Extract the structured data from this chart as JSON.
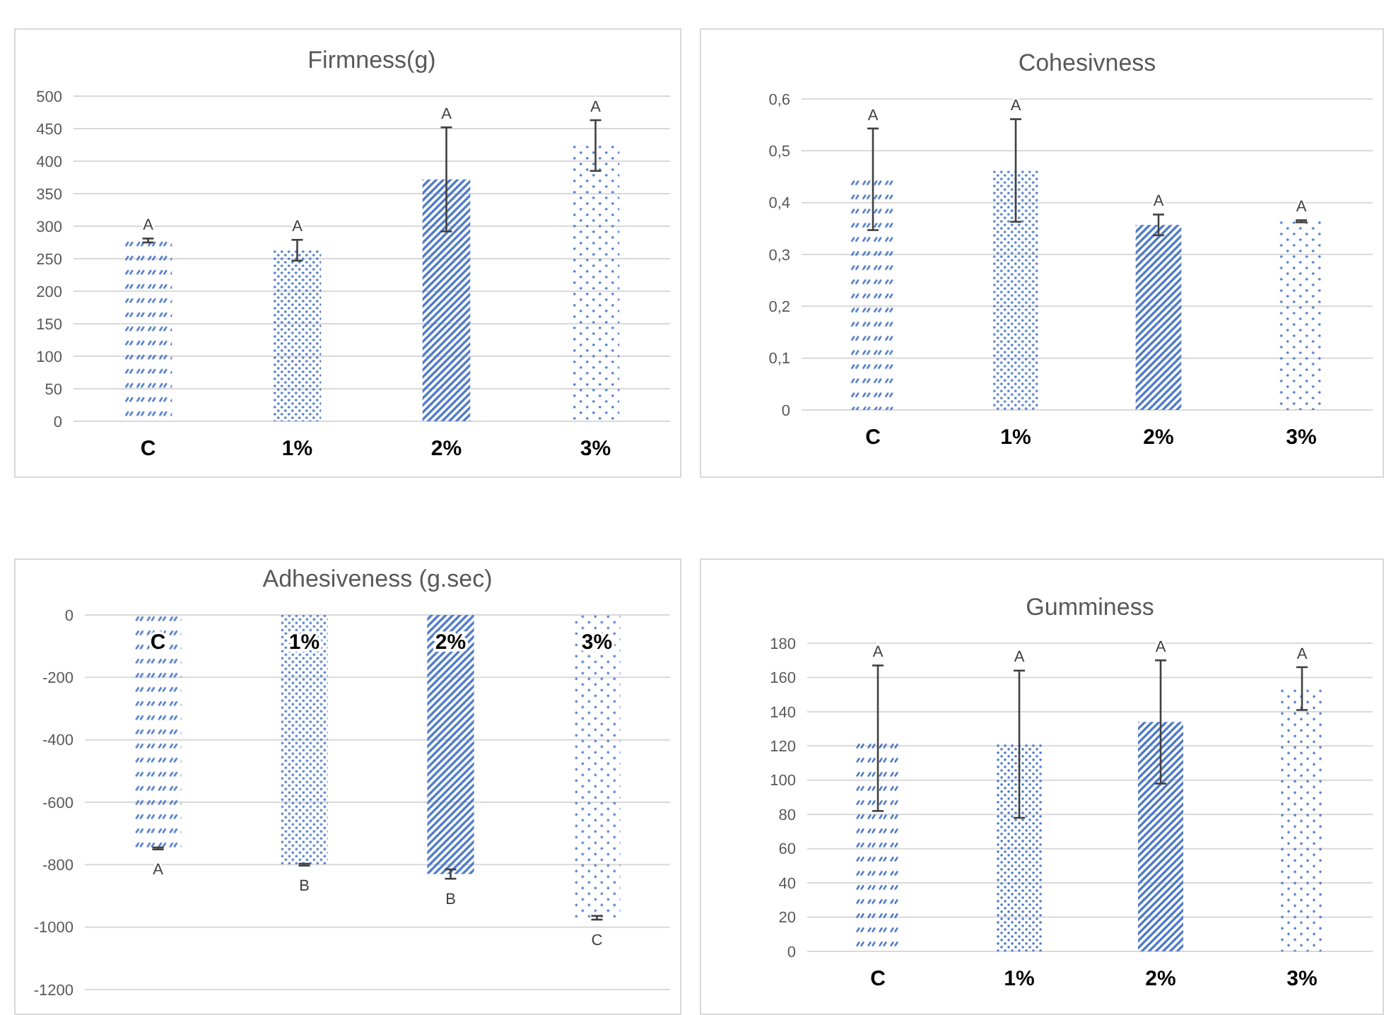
{
  "chart_data": [
    {
      "type": "bar",
      "title": "Firmness(g)",
      "categories": [
        "C",
        "1%",
        "2%",
        "3%"
      ],
      "color": "#4472c4",
      "values": [
        278,
        263,
        372,
        424
      ],
      "errors": [
        3,
        16,
        80,
        39
      ],
      "ylim": [
        0,
        500
      ],
      "yticks": [
        0,
        50,
        100,
        150,
        200,
        250,
        300,
        350,
        400,
        450,
        500
      ],
      "grid": "y",
      "annotations": [
        "A",
        "A",
        "A",
        "A"
      ]
    },
    {
      "type": "bar",
      "title": "Cohesivness",
      "categories": [
        "C",
        "1%",
        "2%",
        "3%"
      ],
      "color": "#4472c4",
      "values": [
        0.445,
        0.462,
        0.357,
        0.364
      ],
      "errors": [
        0.098,
        0.099,
        0.02,
        0.002
      ],
      "ylim": [
        0,
        0.6
      ],
      "yticks": [
        {
          "value": 0,
          "label": "0"
        },
        {
          "value": 0.1,
          "label": "0,1"
        },
        {
          "value": 0.2,
          "label": "0,2"
        },
        {
          "value": 0.3,
          "label": "0,3"
        },
        {
          "value": 0.4,
          "label": "0,4"
        },
        {
          "value": 0.5,
          "label": "0,5"
        },
        {
          "value": 0.6,
          "label": "0,6"
        }
      ],
      "grid": "y",
      "annotations": [
        "A",
        "A",
        "A",
        "A"
      ]
    },
    {
      "type": "bar",
      "title": "Adhesiveness (g.sec)",
      "categories": [
        "C",
        "1%",
        "2%",
        "3%"
      ],
      "color": "#4472c4",
      "values": [
        -748,
        -800,
        -830,
        -970
      ],
      "errors": [
        3,
        3,
        15,
        6
      ],
      "ylim": [
        -1200,
        0
      ],
      "yticks": [
        -1200,
        -1000,
        -800,
        -600,
        -400,
        -200,
        0
      ],
      "grid": "y",
      "annotations": [
        "A",
        "B",
        "B",
        "C"
      ]
    },
    {
      "type": "bar",
      "title": "Gumminess",
      "categories": [
        "C",
        "1%",
        "2%",
        "3%"
      ],
      "color": "#4472c4",
      "values": [
        122,
        121,
        134,
        153
      ],
      "errors": [
        [
          82,
          167
        ],
        [
          78,
          164
        ],
        [
          98,
          170
        ],
        [
          141,
          166
        ]
      ],
      "ylim": [
        0,
        180
      ],
      "yticks": [
        0,
        20,
        40,
        60,
        80,
        100,
        120,
        140,
        160,
        180
      ],
      "grid": "y",
      "annotations": [
        "A",
        "A",
        "A",
        "A"
      ]
    }
  ]
}
